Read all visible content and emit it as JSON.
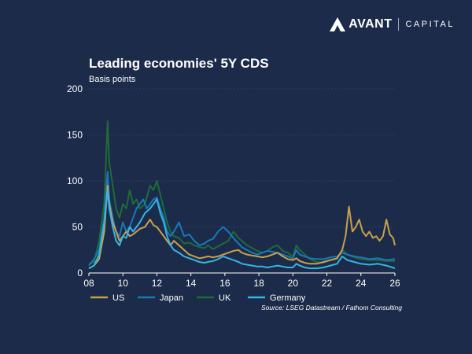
{
  "brand": {
    "name": "AVANT",
    "suffix": "CAPITAL",
    "logo_icon": "avant-a-icon"
  },
  "chart_data": {
    "type": "line",
    "title": "Leading economies' 5Y CDS",
    "subtitle": "Basis points",
    "xlabel": "",
    "ylabel": "",
    "xlim": [
      2008,
      2026
    ],
    "ylim": [
      0,
      200
    ],
    "x_ticks": [
      {
        "value": 2008,
        "label": "08"
      },
      {
        "value": 2010,
        "label": "10"
      },
      {
        "value": 2012,
        "label": "12"
      },
      {
        "value": 2014,
        "label": "14"
      },
      {
        "value": 2016,
        "label": "16"
      },
      {
        "value": 2018,
        "label": "18"
      },
      {
        "value": 2020,
        "label": "20"
      },
      {
        "value": 2022,
        "label": "22"
      },
      {
        "value": 2024,
        "label": "24"
      },
      {
        "value": 2026,
        "label": "26"
      }
    ],
    "y_ticks": [
      0,
      50,
      100,
      150,
      200
    ],
    "grid": true,
    "legend": "bottom",
    "series": [
      {
        "name": "UK",
        "color": "#1e6b3a",
        "points": [
          [
            2008.0,
            10
          ],
          [
            2008.3,
            12
          ],
          [
            2008.6,
            35
          ],
          [
            2008.9,
            75
          ],
          [
            2009.1,
            165
          ],
          [
            2009.2,
            120
          ],
          [
            2009.4,
            95
          ],
          [
            2009.6,
            70
          ],
          [
            2009.8,
            60
          ],
          [
            2010.0,
            75
          ],
          [
            2010.2,
            70
          ],
          [
            2010.4,
            90
          ],
          [
            2010.6,
            75
          ],
          [
            2010.8,
            80
          ],
          [
            2011.0,
            70
          ],
          [
            2011.3,
            75
          ],
          [
            2011.6,
            95
          ],
          [
            2011.8,
            90
          ],
          [
            2012.0,
            100
          ],
          [
            2012.2,
            85
          ],
          [
            2012.4,
            70
          ],
          [
            2012.6,
            55
          ],
          [
            2012.8,
            45
          ],
          [
            2013.0,
            40
          ],
          [
            2013.3,
            38
          ],
          [
            2013.6,
            32
          ],
          [
            2013.9,
            33
          ],
          [
            2014.2,
            30
          ],
          [
            2014.5,
            28
          ],
          [
            2014.8,
            27
          ],
          [
            2015.0,
            30
          ],
          [
            2015.3,
            26
          ],
          [
            2015.6,
            29
          ],
          [
            2015.9,
            32
          ],
          [
            2016.2,
            35
          ],
          [
            2016.5,
            45
          ],
          [
            2016.8,
            38
          ],
          [
            2017.0,
            35
          ],
          [
            2017.3,
            30
          ],
          [
            2017.6,
            27
          ],
          [
            2017.9,
            24
          ],
          [
            2018.2,
            22
          ],
          [
            2018.5,
            24
          ],
          [
            2018.8,
            28
          ],
          [
            2019.1,
            30
          ],
          [
            2019.4,
            24
          ],
          [
            2019.7,
            22
          ],
          [
            2020.0,
            18
          ],
          [
            2020.2,
            30
          ],
          [
            2020.4,
            25
          ],
          [
            2020.7,
            20
          ],
          [
            2021.0,
            15
          ],
          [
            2021.4,
            12
          ],
          [
            2021.8,
            11
          ],
          [
            2022.2,
            14
          ],
          [
            2022.6,
            15
          ],
          [
            2022.9,
            25
          ],
          [
            2023.2,
            20
          ],
          [
            2023.6,
            17
          ],
          [
            2024.0,
            15
          ],
          [
            2024.5,
            14
          ],
          [
            2025.0,
            14
          ],
          [
            2025.5,
            13
          ],
          [
            2026.0,
            13
          ]
        ]
      },
      {
        "name": "Japan",
        "color": "#1a78b8",
        "points": [
          [
            2008.0,
            8
          ],
          [
            2008.3,
            15
          ],
          [
            2008.6,
            25
          ],
          [
            2008.9,
            60
          ],
          [
            2009.1,
            110
          ],
          [
            2009.2,
            80
          ],
          [
            2009.4,
            60
          ],
          [
            2009.6,
            45
          ],
          [
            2009.8,
            40
          ],
          [
            2010.0,
            55
          ],
          [
            2010.2,
            45
          ],
          [
            2010.4,
            50
          ],
          [
            2010.6,
            60
          ],
          [
            2010.8,
            70
          ],
          [
            2011.0,
            75
          ],
          [
            2011.2,
            80
          ],
          [
            2011.4,
            70
          ],
          [
            2011.6,
            75
          ],
          [
            2011.8,
            80
          ],
          [
            2012.0,
            82
          ],
          [
            2012.2,
            70
          ],
          [
            2012.4,
            60
          ],
          [
            2012.6,
            45
          ],
          [
            2012.8,
            40
          ],
          [
            2013.0,
            45
          ],
          [
            2013.3,
            55
          ],
          [
            2013.6,
            40
          ],
          [
            2013.9,
            42
          ],
          [
            2014.2,
            35
          ],
          [
            2014.5,
            30
          ],
          [
            2014.8,
            32
          ],
          [
            2015.0,
            35
          ],
          [
            2015.3,
            37
          ],
          [
            2015.6,
            45
          ],
          [
            2015.9,
            50
          ],
          [
            2016.2,
            45
          ],
          [
            2016.5,
            38
          ],
          [
            2016.8,
            32
          ],
          [
            2017.0,
            28
          ],
          [
            2017.3,
            25
          ],
          [
            2017.6,
            22
          ],
          [
            2017.9,
            20
          ],
          [
            2018.2,
            22
          ],
          [
            2018.5,
            24
          ],
          [
            2018.8,
            23
          ],
          [
            2019.1,
            22
          ],
          [
            2019.4,
            20
          ],
          [
            2019.7,
            18
          ],
          [
            2020.0,
            16
          ],
          [
            2020.2,
            25
          ],
          [
            2020.4,
            20
          ],
          [
            2020.7,
            18
          ],
          [
            2021.0,
            16
          ],
          [
            2021.4,
            15
          ],
          [
            2021.8,
            15
          ],
          [
            2022.2,
            17
          ],
          [
            2022.6,
            18
          ],
          [
            2022.9,
            22
          ],
          [
            2023.2,
            20
          ],
          [
            2023.6,
            18
          ],
          [
            2024.0,
            17
          ],
          [
            2024.5,
            15
          ],
          [
            2025.0,
            16
          ],
          [
            2025.5,
            14
          ],
          [
            2026.0,
            15
          ]
        ]
      },
      {
        "name": "US",
        "color": "#c8a04a",
        "points": [
          [
            2008.0,
            5
          ],
          [
            2008.3,
            8
          ],
          [
            2008.6,
            15
          ],
          [
            2008.9,
            45
          ],
          [
            2009.1,
            95
          ],
          [
            2009.2,
            75
          ],
          [
            2009.4,
            55
          ],
          [
            2009.6,
            45
          ],
          [
            2009.8,
            35
          ],
          [
            2010.0,
            40
          ],
          [
            2010.2,
            45
          ],
          [
            2010.4,
            40
          ],
          [
            2010.6,
            42
          ],
          [
            2010.8,
            45
          ],
          [
            2011.0,
            48
          ],
          [
            2011.3,
            50
          ],
          [
            2011.6,
            58
          ],
          [
            2011.8,
            52
          ],
          [
            2012.0,
            50
          ],
          [
            2012.2,
            45
          ],
          [
            2012.4,
            40
          ],
          [
            2012.6,
            35
          ],
          [
            2012.8,
            30
          ],
          [
            2013.0,
            35
          ],
          [
            2013.3,
            30
          ],
          [
            2013.6,
            25
          ],
          [
            2013.9,
            20
          ],
          [
            2014.2,
            18
          ],
          [
            2014.5,
            16
          ],
          [
            2014.8,
            17
          ],
          [
            2015.0,
            18
          ],
          [
            2015.3,
            17
          ],
          [
            2015.6,
            18
          ],
          [
            2015.9,
            20
          ],
          [
            2016.2,
            22
          ],
          [
            2016.5,
            24
          ],
          [
            2016.8,
            25
          ],
          [
            2017.0,
            22
          ],
          [
            2017.3,
            20
          ],
          [
            2017.6,
            19
          ],
          [
            2017.9,
            18
          ],
          [
            2018.2,
            17
          ],
          [
            2018.5,
            18
          ],
          [
            2018.8,
            20
          ],
          [
            2019.1,
            22
          ],
          [
            2019.4,
            18
          ],
          [
            2019.7,
            15
          ],
          [
            2020.0,
            14
          ],
          [
            2020.2,
            16
          ],
          [
            2020.4,
            13
          ],
          [
            2020.7,
            11
          ],
          [
            2021.0,
            10
          ],
          [
            2021.4,
            10
          ],
          [
            2021.8,
            12
          ],
          [
            2022.2,
            14
          ],
          [
            2022.6,
            16
          ],
          [
            2022.9,
            25
          ],
          [
            2023.1,
            40
          ],
          [
            2023.3,
            72
          ],
          [
            2023.5,
            45
          ],
          [
            2023.7,
            50
          ],
          [
            2023.9,
            58
          ],
          [
            2024.1,
            45
          ],
          [
            2024.3,
            40
          ],
          [
            2024.5,
            45
          ],
          [
            2024.7,
            38
          ],
          [
            2024.9,
            40
          ],
          [
            2025.1,
            35
          ],
          [
            2025.3,
            40
          ],
          [
            2025.5,
            58
          ],
          [
            2025.7,
            42
          ],
          [
            2025.9,
            38
          ],
          [
            2026.0,
            30
          ]
        ]
      },
      {
        "name": "Germany",
        "color": "#36b3e6",
        "points": [
          [
            2008.0,
            5
          ],
          [
            2008.3,
            8
          ],
          [
            2008.6,
            20
          ],
          [
            2008.9,
            55
          ],
          [
            2009.1,
            90
          ],
          [
            2009.2,
            70
          ],
          [
            2009.4,
            50
          ],
          [
            2009.6,
            35
          ],
          [
            2009.8,
            30
          ],
          [
            2010.0,
            40
          ],
          [
            2010.2,
            38
          ],
          [
            2010.4,
            50
          ],
          [
            2010.6,
            45
          ],
          [
            2010.8,
            50
          ],
          [
            2011.0,
            55
          ],
          [
            2011.3,
            65
          ],
          [
            2011.6,
            70
          ],
          [
            2011.8,
            75
          ],
          [
            2012.0,
            80
          ],
          [
            2012.2,
            65
          ],
          [
            2012.4,
            55
          ],
          [
            2012.6,
            40
          ],
          [
            2012.8,
            30
          ],
          [
            2013.0,
            25
          ],
          [
            2013.3,
            22
          ],
          [
            2013.6,
            18
          ],
          [
            2013.9,
            16
          ],
          [
            2014.2,
            14
          ],
          [
            2014.5,
            12
          ],
          [
            2014.8,
            11
          ],
          [
            2015.0,
            12
          ],
          [
            2015.3,
            13
          ],
          [
            2015.6,
            15
          ],
          [
            2015.9,
            18
          ],
          [
            2016.2,
            16
          ],
          [
            2016.5,
            14
          ],
          [
            2016.8,
            12
          ],
          [
            2017.0,
            10
          ],
          [
            2017.3,
            9
          ],
          [
            2017.6,
            8
          ],
          [
            2017.9,
            7
          ],
          [
            2018.2,
            7
          ],
          [
            2018.5,
            6
          ],
          [
            2018.8,
            7
          ],
          [
            2019.1,
            8
          ],
          [
            2019.4,
            7
          ],
          [
            2019.7,
            6
          ],
          [
            2020.0,
            6
          ],
          [
            2020.2,
            10
          ],
          [
            2020.4,
            8
          ],
          [
            2020.7,
            6
          ],
          [
            2021.0,
            5
          ],
          [
            2021.4,
            5
          ],
          [
            2021.8,
            6
          ],
          [
            2022.2,
            8
          ],
          [
            2022.6,
            10
          ],
          [
            2022.9,
            18
          ],
          [
            2023.2,
            14
          ],
          [
            2023.6,
            12
          ],
          [
            2024.0,
            10
          ],
          [
            2024.5,
            9
          ],
          [
            2025.0,
            10
          ],
          [
            2025.5,
            8
          ],
          [
            2026.0,
            5
          ]
        ]
      }
    ],
    "legend_items": [
      {
        "name": "US",
        "color": "#c8a04a"
      },
      {
        "name": "Japan",
        "color": "#1a78b8"
      },
      {
        "name": "UK",
        "color": "#1e6b3a"
      },
      {
        "name": "Germany",
        "color": "#36b3e6"
      }
    ],
    "source": "Source: LSEG Datastream / Fathom Consulting"
  }
}
